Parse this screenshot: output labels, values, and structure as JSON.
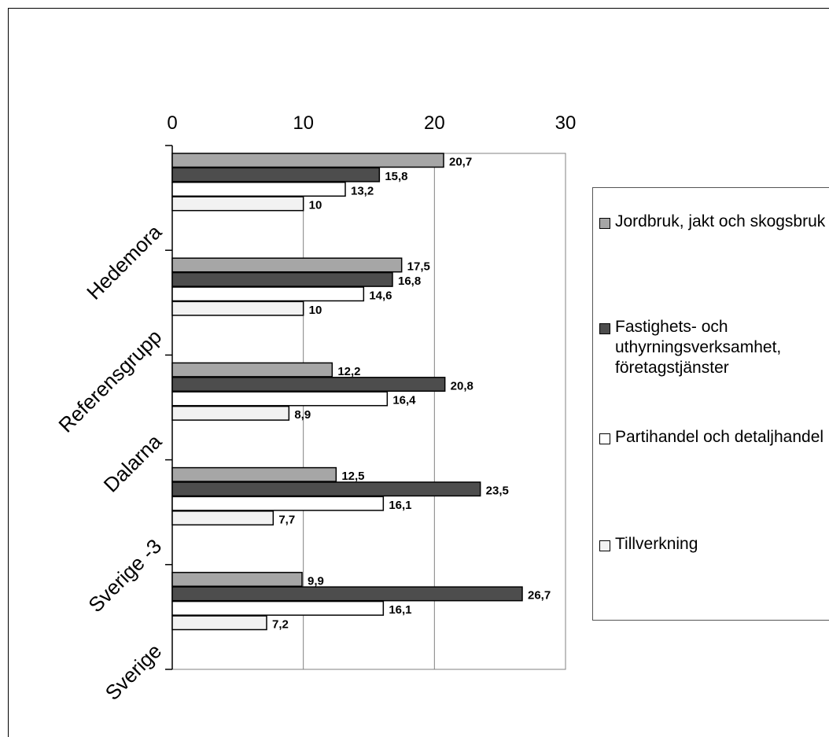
{
  "chart_data": {
    "type": "bar",
    "orientation": "horizontal",
    "categories": [
      "Hedemora",
      "Referensgrupp",
      "Dalarna",
      "Sverige -3",
      "Sverige"
    ],
    "series": [
      {
        "name": "Jordbruk, jakt och skogsbruk",
        "color": "#a6a6a6",
        "values": [
          20.7,
          17.5,
          12.2,
          12.5,
          9.9
        ],
        "labels": [
          "20,7",
          "17,5",
          "12,2",
          "12,5",
          "9,9"
        ]
      },
      {
        "name": "Fastighets- och uthyrningsverksamhet, företagstjänster",
        "color": "#4d4d4d",
        "values": [
          15.8,
          16.8,
          20.8,
          23.5,
          26.7
        ],
        "labels": [
          "15,8",
          "16,8",
          "20,8",
          "23,5",
          "26,7"
        ]
      },
      {
        "name": "Partihandel och detaljhandel",
        "color": "#ffffff",
        "values": [
          13.2,
          14.6,
          16.4,
          16.1,
          16.1
        ],
        "labels": [
          "13,2",
          "14,6",
          "16,4",
          "16,1",
          "16,1"
        ]
      },
      {
        "name": "Tillverkning",
        "color": "#f2f2f2",
        "values": [
          10,
          10,
          8.9,
          7.7,
          7.2
        ],
        "labels": [
          "10",
          "10",
          "8,9",
          "7,7",
          "7,2"
        ]
      }
    ],
    "xlim": [
      0,
      30
    ],
    "xticks": [
      "0",
      "10",
      "20",
      "30"
    ],
    "grid": true,
    "legend_position": "right"
  }
}
